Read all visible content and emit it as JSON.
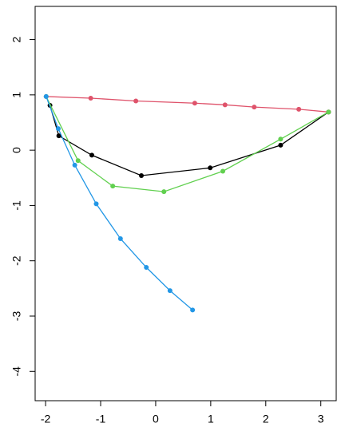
{
  "chart_data": {
    "type": "line",
    "series": [
      {
        "color": "#000000",
        "x": [
          -1.92,
          -1.76,
          -1.16,
          -0.26,
          0.99,
          2.27,
          3.14
        ],
        "values": [
          0.81,
          0.26,
          -0.09,
          -0.46,
          -0.32,
          0.09,
          0.69
        ]
      },
      {
        "color": "#DF536B",
        "x": [
          -1.99,
          -1.18,
          -0.36,
          0.71,
          1.26,
          1.79,
          2.6,
          3.14
        ],
        "values": [
          0.97,
          0.94,
          0.89,
          0.85,
          0.82,
          0.78,
          0.74,
          0.69
        ]
      },
      {
        "color": "#61D04F",
        "x": [
          -1.99,
          -1.41,
          -0.78,
          0.15,
          1.22,
          2.27,
          3.14
        ],
        "values": [
          0.97,
          -0.19,
          -0.65,
          -0.75,
          -0.38,
          0.2,
          0.69
        ]
      },
      {
        "color": "#2297E6",
        "x": [
          -1.99,
          -1.77,
          -1.47,
          -1.08,
          -0.64,
          -0.17,
          0.26,
          0.67
        ],
        "values": [
          0.97,
          0.39,
          -0.27,
          -0.97,
          -1.6,
          -2.12,
          -2.54,
          -2.89
        ]
      }
    ],
    "xlim": [
      -2.19,
      3.28
    ],
    "xticks": [
      -2,
      -1,
      0,
      1,
      2,
      3
    ],
    "ylim": [
      -4.53,
      2.6
    ],
    "yticks": [
      -4,
      -3,
      -2,
      -1,
      0,
      1,
      2
    ]
  }
}
